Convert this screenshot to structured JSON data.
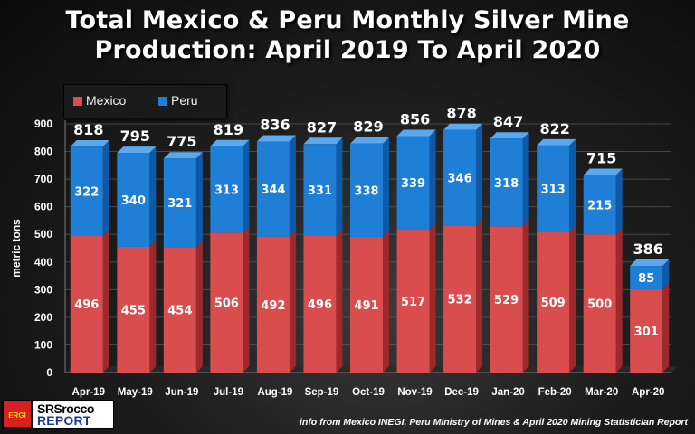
{
  "colors": {
    "mexico": "#d94d4f",
    "peru": "#1f7fd6",
    "mexico_side": "#9c2a2c",
    "peru_side": "#0e5aa8"
  },
  "chart_data": {
    "type": "bar",
    "stacked": true,
    "title_line1": "Total Mexico & Peru Monthly Silver Mine",
    "title_line2": "Production: April 2019 To April 2020",
    "ylabel": "metric tons",
    "xlabel": "",
    "ylim": [
      0,
      900
    ],
    "yticks": [
      "0",
      "100",
      "200",
      "300",
      "400",
      "500",
      "600",
      "700",
      "800",
      "900"
    ],
    "categories": [
      "Apr-19",
      "May-19",
      "Jun-19",
      "Jul-19",
      "Aug-19",
      "Sep-19",
      "Oct-19",
      "Nov-19",
      "Dec-19",
      "Jan-20",
      "Feb-20",
      "Mar-20",
      "Apr-20"
    ],
    "series": [
      {
        "name": "Mexico",
        "values": [
          496,
          455,
          454,
          506,
          492,
          496,
          491,
          517,
          532,
          529,
          509,
          500,
          301
        ]
      },
      {
        "name": "Peru",
        "values": [
          322,
          340,
          321,
          313,
          344,
          331,
          338,
          339,
          346,
          318,
          313,
          215,
          85
        ]
      }
    ],
    "totals": [
      818,
      795,
      775,
      819,
      836,
      827,
      829,
      856,
      878,
      847,
      822,
      715,
      386
    ],
    "legend_position": "top-left"
  },
  "source_note": "info from Mexico INEGI, Peru Ministry of Mines & April 2020 Mining Statistician Report",
  "logo": {
    "badge": "ERGI",
    "line1": "SRSrocco",
    "line2": "REPORT"
  }
}
